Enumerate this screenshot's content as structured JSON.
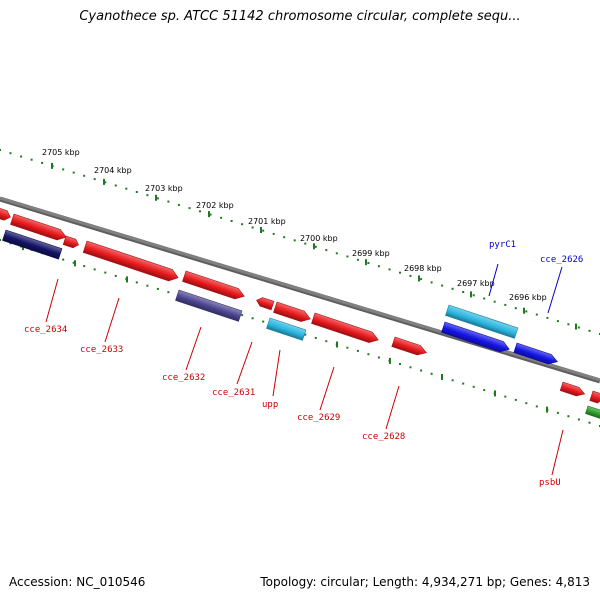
{
  "title": "Cyanothece sp. ATCC 51142 chromosome circular, complete sequ...",
  "footer": {
    "accession": "Accession: NC_010546",
    "summary": "Topology: circular; Length: 4,934,271 bp; Genes: 4,813"
  },
  "colors": {
    "ruler": "#1f7a1f",
    "backbone": "#808080",
    "gene_red": "#e8181b",
    "gene_light_blue": "#29b6e0",
    "gene_blue": "#1414e6",
    "gene_navy": "#121266",
    "gene_purple": "#4b4590",
    "gene_green": "#2aa02a",
    "label_red": "#cc0000",
    "label_blue": "#0000cc"
  },
  "ruler_labels": [
    "2705 kbp",
    "2704 kbp",
    "2703 kbp",
    "2702 kbp",
    "2701 kbp",
    "2700 kbp",
    "2699 kbp",
    "2698 kbp",
    "2697 kbp",
    "2696 kbp"
  ],
  "gene_labels": [
    {
      "text": "cce_2634",
      "color": "red"
    },
    {
      "text": "cce_2633",
      "color": "red"
    },
    {
      "text": "cce_2632",
      "color": "red"
    },
    {
      "text": "cce_2631",
      "color": "red"
    },
    {
      "text": "upp",
      "color": "red"
    },
    {
      "text": "cce_2629",
      "color": "red"
    },
    {
      "text": "cce_2628",
      "color": "red"
    },
    {
      "text": "psbU",
      "color": "red"
    },
    {
      "text": "pyrC1",
      "color": "blue"
    },
    {
      "text": "cce_2626",
      "color": "blue"
    }
  ]
}
